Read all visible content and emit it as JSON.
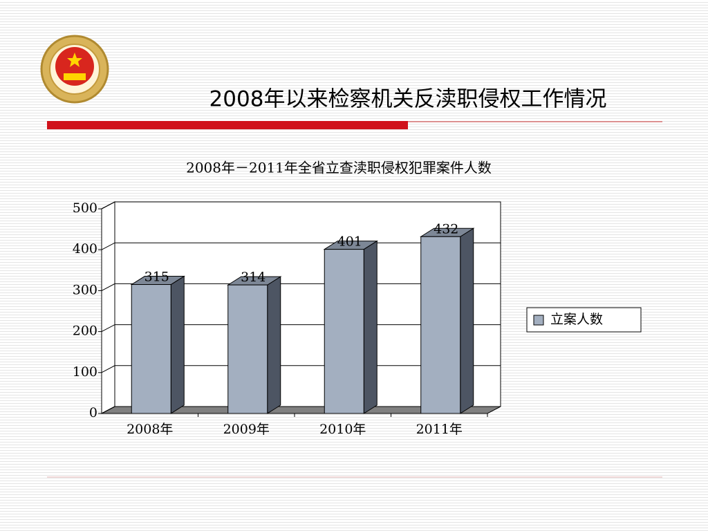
{
  "slide_title": "2008年以来检察机关反渎职侵权工作情况",
  "chart_data": {
    "type": "bar3d",
    "title": "2008年－2011年全省立查渎职侵权犯罪案件人数",
    "categories": [
      "2008年",
      "2009年",
      "2010年",
      "2011年"
    ],
    "series": [
      {
        "name": "立案人数",
        "color": "#a3afc0",
        "values": [
          315,
          314,
          401,
          432
        ]
      }
    ],
    "ylim": [
      0,
      500
    ],
    "yticks": [
      0,
      100,
      200,
      300,
      400,
      500
    ],
    "grid": true,
    "legend": "right",
    "data_labels": true
  }
}
